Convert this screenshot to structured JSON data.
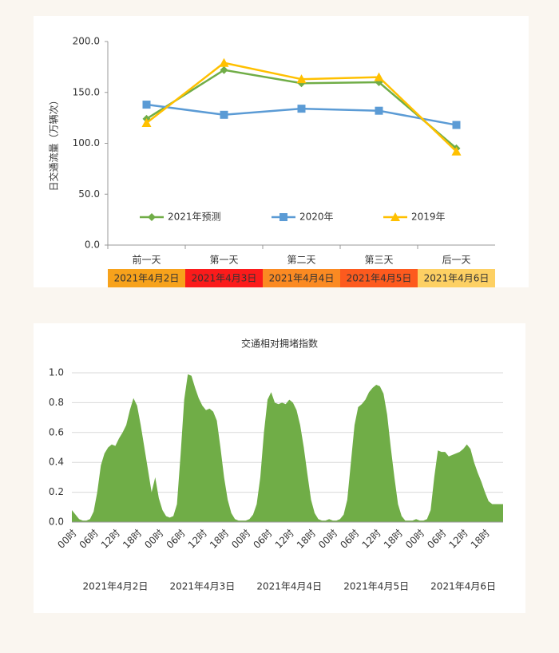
{
  "chart_data": [
    {
      "type": "line",
      "y_label": "日交通流量（万辆次）",
      "categories": [
        "前一天",
        "第一天",
        "第二天",
        "第三天",
        "后一天"
      ],
      "date_bands": [
        {
          "label": "2021年4月2日",
          "color": "#f7a21b"
        },
        {
          "label": "2021年4月3日",
          "color": "#fb1b1b"
        },
        {
          "label": "2021年4月4日",
          "color": "#fb8a22"
        },
        {
          "label": "2021年4月5日",
          "color": "#fd5a1e"
        },
        {
          "label": "2021年4月6日",
          "color": "#fdd063"
        }
      ],
      "series": [
        {
          "name": "2021年预测",
          "color": "#70ad47",
          "marker": "diamond",
          "values": [
            124,
            172,
            159,
            160,
            95
          ]
        },
        {
          "name": "2020年",
          "color": "#5b9bd5",
          "marker": "square",
          "values": [
            138,
            128,
            134,
            132,
            118
          ]
        },
        {
          "name": "2019年",
          "color": "#ffc000",
          "marker": "triangle",
          "values": [
            120,
            179,
            163,
            165,
            92
          ]
        }
      ],
      "ylim": [
        0,
        200
      ],
      "yticks": [
        {
          "value": 0,
          "label": "0.0"
        },
        {
          "value": 50,
          "label": "50.0"
        },
        {
          "value": 100,
          "label": "100.0"
        },
        {
          "value": 150,
          "label": "150.0"
        },
        {
          "value": 200,
          "label": "200.0"
        }
      ],
      "legend": "bottom"
    },
    {
      "type": "area",
      "title": "交通相对拥堵指数",
      "color": "#70ad47",
      "categories": [
        "00时",
        null,
        null,
        null,
        null,
        null,
        "06时",
        null,
        null,
        null,
        null,
        null,
        "12时",
        null,
        null,
        null,
        null,
        null,
        "18时",
        null,
        null,
        null,
        null,
        null,
        "00时",
        null,
        null,
        null,
        null,
        null,
        "06时",
        null,
        null,
        null,
        null,
        null,
        "12时",
        null,
        null,
        null,
        null,
        null,
        "18时",
        null,
        null,
        null,
        null,
        null,
        "00时",
        null,
        null,
        null,
        null,
        null,
        "06时",
        null,
        null,
        null,
        null,
        null,
        "12时",
        null,
        null,
        null,
        null,
        null,
        "18时",
        null,
        null,
        null,
        null,
        null,
        "00时",
        null,
        null,
        null,
        null,
        null,
        "06时",
        null,
        null,
        null,
        null,
        null,
        "12时",
        null,
        null,
        null,
        null,
        null,
        "18时",
        null,
        null,
        null,
        null,
        null,
        "00时",
        null,
        null,
        null,
        null,
        null,
        "06时",
        null,
        null,
        null,
        null,
        null,
        "12时",
        null,
        null,
        null,
        null,
        null,
        "18时",
        null,
        null,
        null,
        null,
        null
      ],
      "values": [
        0.08,
        0.05,
        0.02,
        0.01,
        0.01,
        0.02,
        0.07,
        0.2,
        0.38,
        0.46,
        0.5,
        0.52,
        0.51,
        0.56,
        0.6,
        0.65,
        0.75,
        0.83,
        0.78,
        0.65,
        0.5,
        0.35,
        0.2,
        0.3,
        0.16,
        0.08,
        0.04,
        0.03,
        0.04,
        0.12,
        0.45,
        0.82,
        0.99,
        0.98,
        0.9,
        0.83,
        0.78,
        0.75,
        0.76,
        0.74,
        0.68,
        0.5,
        0.3,
        0.15,
        0.06,
        0.02,
        0.01,
        0.01,
        0.01,
        0.02,
        0.05,
        0.12,
        0.3,
        0.6,
        0.82,
        0.87,
        0.8,
        0.79,
        0.8,
        0.79,
        0.82,
        0.8,
        0.75,
        0.65,
        0.5,
        0.32,
        0.15,
        0.06,
        0.02,
        0.01,
        0.01,
        0.02,
        0.01,
        0.01,
        0.02,
        0.05,
        0.15,
        0.4,
        0.65,
        0.77,
        0.79,
        0.82,
        0.87,
        0.9,
        0.92,
        0.91,
        0.86,
        0.72,
        0.5,
        0.3,
        0.12,
        0.04,
        0.01,
        0.01,
        0.01,
        0.02,
        0.01,
        0.01,
        0.02,
        0.08,
        0.3,
        0.48,
        0.47,
        0.47,
        0.44,
        0.45,
        0.46,
        0.47,
        0.49,
        0.52,
        0.49,
        0.4,
        0.33,
        0.27,
        0.2,
        0.14,
        0.12,
        0.12,
        0.12,
        0.12
      ],
      "date_labels": [
        "2021年4月2日",
        "2021年4月3日",
        "2021年4月4日",
        "2021年4月5日",
        "2021年4月6日"
      ],
      "ylim": [
        0,
        1
      ],
      "yticks": [
        {
          "value": 0,
          "label": "0.0"
        },
        0.2,
        0.4,
        0.6,
        0.8,
        {
          "value": 1,
          "label": "1.0"
        }
      ],
      "grid": true
    }
  ]
}
